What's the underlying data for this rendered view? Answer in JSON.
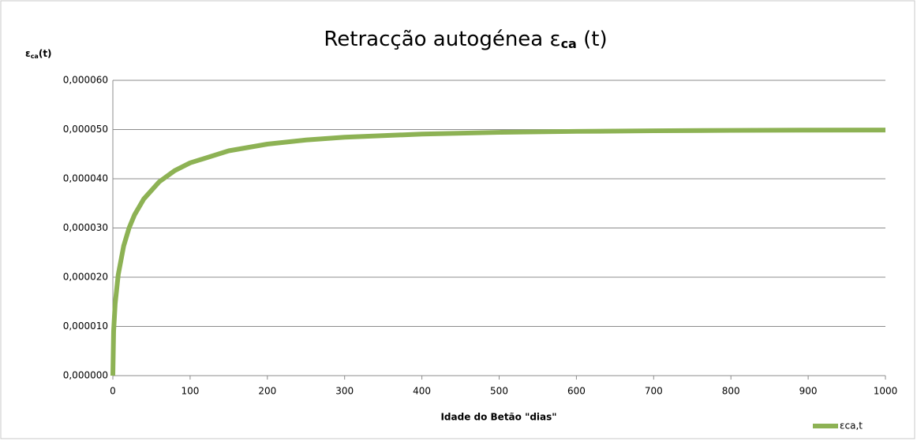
{
  "chart_data": {
    "type": "line",
    "title": {
      "main": "Retracção autogénea ε",
      "sub": "ca",
      "end": " (t)"
    },
    "y_label": {
      "main": "ε",
      "sub": "ca",
      "end": "(t)"
    },
    "x_label": "Idade do Betão \"dias\"",
    "x": [
      0,
      1,
      3,
      7,
      14,
      21,
      28,
      40,
      60,
      80,
      100,
      150,
      200,
      250,
      300,
      400,
      500,
      600,
      700,
      800,
      900,
      1000
    ],
    "series": [
      {
        "name": "εca,t",
        "color": "#8db254",
        "values": [
          0,
          9.06e-06,
          1.464e-05,
          2.054e-05,
          2.634e-05,
          3e-05,
          3.265e-05,
          3.589e-05,
          3.938e-05,
          4.165e-05,
          4.323e-05,
          4.568e-05,
          4.704e-05,
          4.788e-05,
          4.844e-05,
          4.908e-05,
          4.943e-05,
          4.963e-05,
          4.975e-05,
          4.983e-05,
          4.988e-05,
          4.991e-05
        ]
      }
    ],
    "xlim": [
      0,
      1000
    ],
    "xticks": [
      0,
      100,
      200,
      300,
      400,
      500,
      600,
      700,
      800,
      900,
      1000
    ],
    "ylim": [
      0,
      6e-05
    ],
    "yticks": [
      {
        "value": 0,
        "label": "0,000000"
      },
      {
        "value": 1e-05,
        "label": "0,000010"
      },
      {
        "value": 2e-05,
        "label": "0,000020"
      },
      {
        "value": 3e-05,
        "label": "0,000030"
      },
      {
        "value": 4e-05,
        "label": "0,000040"
      },
      {
        "value": 5e-05,
        "label": "0,000050"
      },
      {
        "value": 6e-05,
        "label": "0,000060"
      }
    ],
    "grid": true,
    "legend": "bottom-right"
  }
}
